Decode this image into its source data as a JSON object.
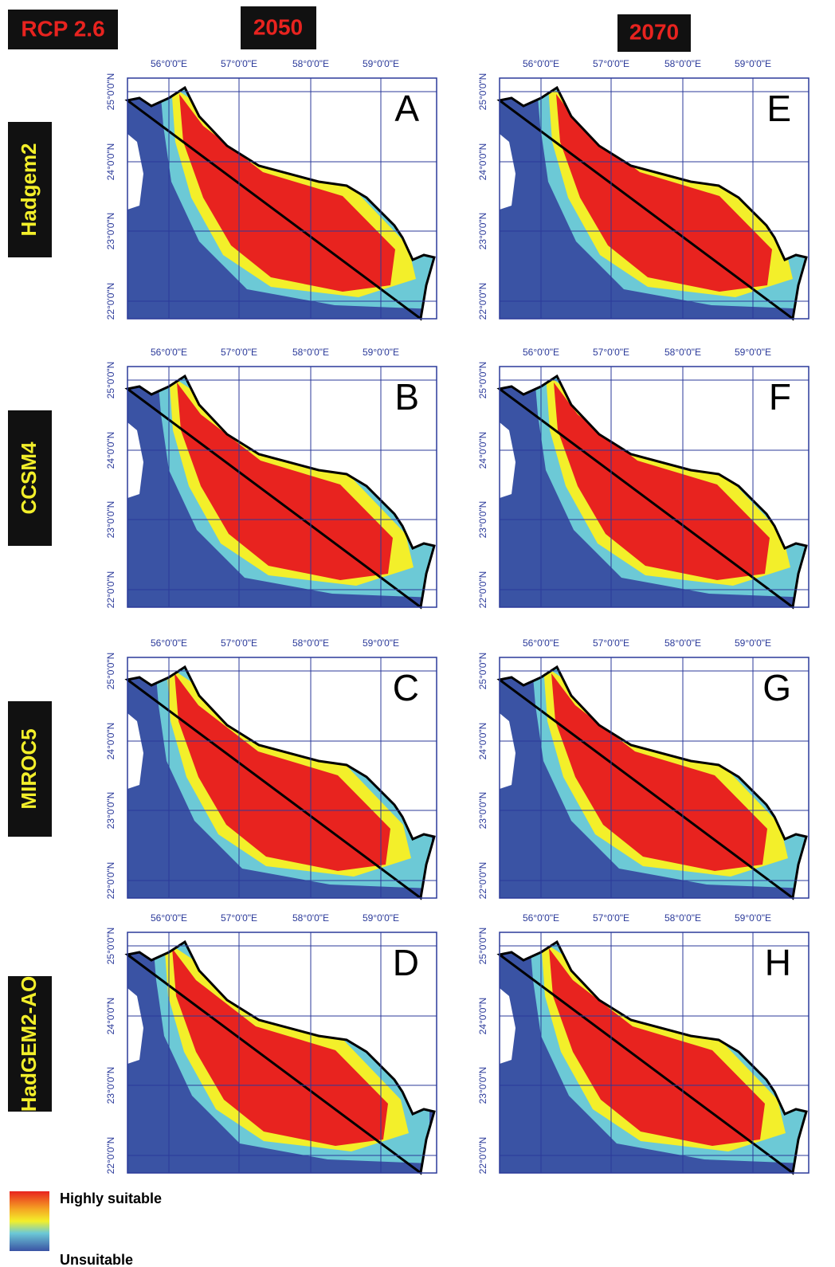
{
  "header": {
    "scenario": "RCP 2.6",
    "columns": [
      "2050",
      "2070"
    ]
  },
  "rows": [
    {
      "model": "Hadgem2",
      "panels": [
        "A",
        "E"
      ]
    },
    {
      "model": "CCSM4",
      "panels": [
        "B",
        "F"
      ]
    },
    {
      "model": "MIROC5",
      "panels": [
        "C",
        "G"
      ]
    },
    {
      "model": "HadGEM2-AO",
      "panels": [
        "D",
        "H"
      ]
    }
  ],
  "axes": {
    "lon_labels": [
      "56°0'0\"E",
      "57°0'0\"E",
      "58°0'0\"E",
      "59°0'0\"E"
    ],
    "lat_labels": [
      "25°0'0\"N",
      "24°0'0\"N",
      "23°0'0\"N",
      "22°0'0\"N"
    ]
  },
  "legend": {
    "high": "Highly suitable",
    "low": "Unsuitable"
  }
}
